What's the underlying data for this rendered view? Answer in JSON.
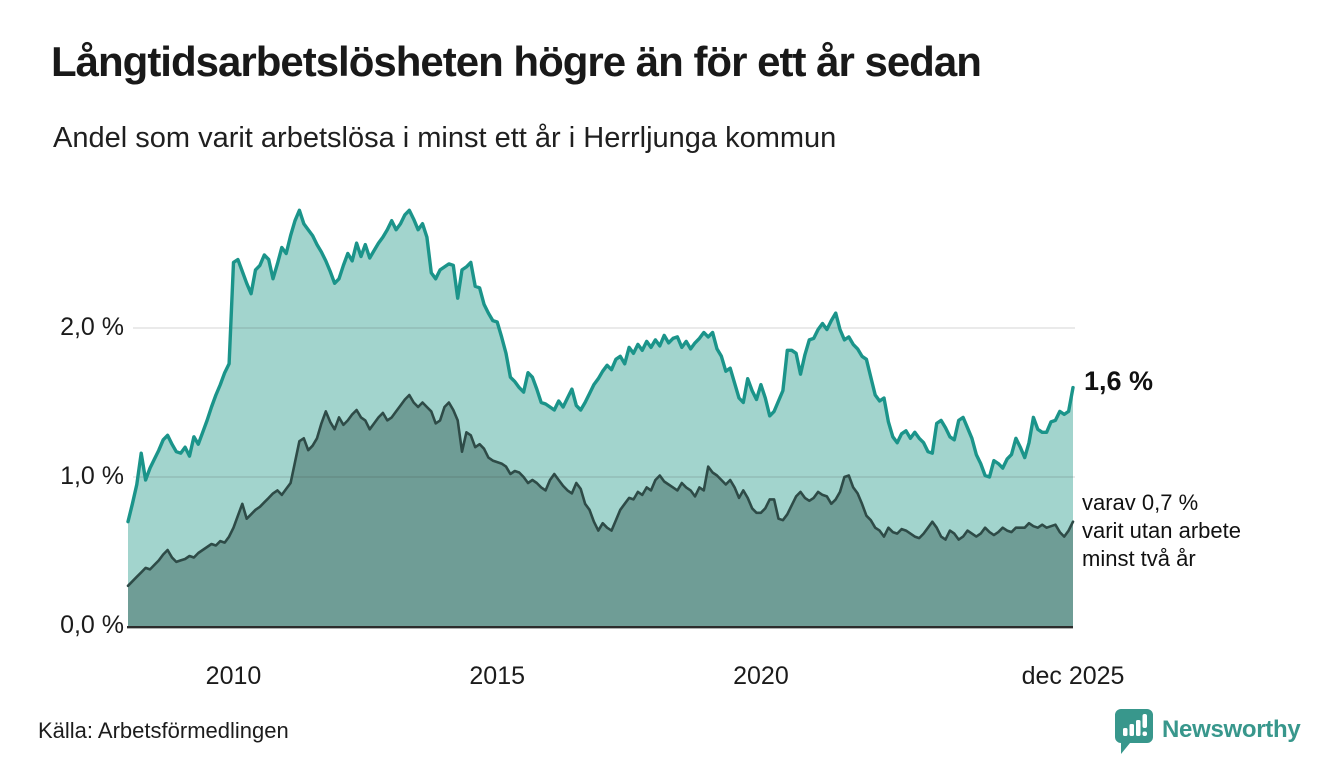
{
  "header": {
    "title": "Långtidsarbetslösheten högre än för ett år sedan",
    "subtitle": "Andel som varit arbetslösa i minst ett år i Herrljunga kommun"
  },
  "chart_data": {
    "type": "area",
    "title": "Långtidsarbetslösheten högre än för ett år sedan",
    "subtitle": "Andel som varit arbetslösa i minst ett år i Herrljunga kommun",
    "unit": "%",
    "x_range": {
      "start": "2008-01",
      "end": "2025-12",
      "frequency": "monthly"
    },
    "ylim": [
      0,
      2.86
    ],
    "grid": "horizontal-only",
    "legend_position": "direct-labels-right",
    "y_ticks": [
      {
        "label": "0,0 %",
        "value": 0
      },
      {
        "label": "1,0 %",
        "value": 1
      },
      {
        "label": "2,0 %",
        "value": 2
      }
    ],
    "x_ticks": [
      {
        "label": "2010",
        "index": 24
      },
      {
        "label": "2015",
        "index": 84
      },
      {
        "label": "2020",
        "index": 144
      },
      {
        "label": "dec 2025",
        "index": 215
      }
    ],
    "series": [
      {
        "name": "Andel arbetslösa minst ett år",
        "color": "#1b948a",
        "fill": "#a2d4cd",
        "end_value": 1.6,
        "end_label": "1,6 %",
        "values": [
          0.7,
          0.82,
          0.95,
          1.16,
          0.98,
          1.06,
          1.12,
          1.18,
          1.25,
          1.28,
          1.22,
          1.17,
          1.16,
          1.2,
          1.14,
          1.27,
          1.22,
          1.3,
          1.38,
          1.47,
          1.55,
          1.62,
          1.7,
          1.76,
          2.44,
          2.46,
          2.38,
          2.3,
          2.23,
          2.39,
          2.42,
          2.49,
          2.46,
          2.33,
          2.43,
          2.54,
          2.5,
          2.62,
          2.72,
          2.79,
          2.7,
          2.66,
          2.62,
          2.56,
          2.51,
          2.45,
          2.38,
          2.3,
          2.33,
          2.42,
          2.5,
          2.45,
          2.57,
          2.48,
          2.56,
          2.47,
          2.52,
          2.57,
          2.61,
          2.66,
          2.72,
          2.66,
          2.7,
          2.76,
          2.79,
          2.73,
          2.66,
          2.7,
          2.61,
          2.37,
          2.33,
          2.39,
          2.41,
          2.43,
          2.42,
          2.2,
          2.39,
          2.41,
          2.44,
          2.28,
          2.27,
          2.16,
          2.1,
          2.05,
          2.04,
          1.94,
          1.83,
          1.67,
          1.64,
          1.6,
          1.57,
          1.7,
          1.67,
          1.59,
          1.5,
          1.49,
          1.47,
          1.45,
          1.51,
          1.47,
          1.53,
          1.59,
          1.48,
          1.45,
          1.5,
          1.56,
          1.62,
          1.66,
          1.71,
          1.75,
          1.72,
          1.79,
          1.81,
          1.76,
          1.87,
          1.83,
          1.89,
          1.85,
          1.91,
          1.87,
          1.92,
          1.88,
          1.95,
          1.9,
          1.93,
          1.94,
          1.87,
          1.91,
          1.86,
          1.9,
          1.93,
          1.97,
          1.94,
          1.97,
          1.86,
          1.81,
          1.71,
          1.73,
          1.63,
          1.53,
          1.5,
          1.66,
          1.58,
          1.52,
          1.62,
          1.53,
          1.41,
          1.44,
          1.51,
          1.58,
          1.85,
          1.85,
          1.83,
          1.69,
          1.82,
          1.92,
          1.93,
          1.99,
          2.03,
          1.99,
          2.05,
          2.1,
          1.99,
          1.92,
          1.94,
          1.89,
          1.86,
          1.81,
          1.79,
          1.67,
          1.55,
          1.51,
          1.53,
          1.37,
          1.27,
          1.23,
          1.29,
          1.31,
          1.26,
          1.3,
          1.26,
          1.23,
          1.17,
          1.16,
          1.36,
          1.38,
          1.33,
          1.27,
          1.25,
          1.38,
          1.4,
          1.33,
          1.26,
          1.15,
          1.09,
          1.01,
          1.0,
          1.11,
          1.09,
          1.06,
          1.12,
          1.15,
          1.26,
          1.2,
          1.13,
          1.23,
          1.4,
          1.32,
          1.3,
          1.3,
          1.37,
          1.38,
          1.44,
          1.42,
          1.44,
          1.6
        ]
      },
      {
        "name": "Varav utan arbete minst två år",
        "color": "#2e4b47",
        "fill": "#6f9d96",
        "end_value": 0.7,
        "end_label_lines": [
          "varav 0,7 %",
          "varit utan arbete",
          "minst två år"
        ],
        "values": [
          0.27,
          0.3,
          0.33,
          0.36,
          0.39,
          0.38,
          0.41,
          0.44,
          0.48,
          0.51,
          0.46,
          0.43,
          0.44,
          0.45,
          0.47,
          0.46,
          0.49,
          0.51,
          0.53,
          0.55,
          0.54,
          0.57,
          0.56,
          0.6,
          0.66,
          0.74,
          0.82,
          0.72,
          0.75,
          0.78,
          0.8,
          0.83,
          0.86,
          0.89,
          0.91,
          0.88,
          0.92,
          0.96,
          1.1,
          1.24,
          1.26,
          1.18,
          1.21,
          1.26,
          1.36,
          1.44,
          1.37,
          1.32,
          1.4,
          1.35,
          1.38,
          1.42,
          1.45,
          1.4,
          1.38,
          1.32,
          1.36,
          1.4,
          1.43,
          1.38,
          1.4,
          1.44,
          1.48,
          1.52,
          1.55,
          1.5,
          1.47,
          1.5,
          1.47,
          1.44,
          1.36,
          1.38,
          1.47,
          1.5,
          1.45,
          1.38,
          1.17,
          1.3,
          1.28,
          1.2,
          1.22,
          1.19,
          1.13,
          1.11,
          1.1,
          1.09,
          1.07,
          1.02,
          1.04,
          1.03,
          1.0,
          0.96,
          0.98,
          0.96,
          0.93,
          0.91,
          0.98,
          1.02,
          0.98,
          0.94,
          0.91,
          0.89,
          0.96,
          0.92,
          0.82,
          0.78,
          0.7,
          0.64,
          0.69,
          0.66,
          0.64,
          0.71,
          0.78,
          0.82,
          0.86,
          0.85,
          0.9,
          0.88,
          0.93,
          0.91,
          0.98,
          1.01,
          0.97,
          0.95,
          0.93,
          0.91,
          0.96,
          0.93,
          0.91,
          0.87,
          0.93,
          0.91,
          1.07,
          1.03,
          1.01,
          0.98,
          0.95,
          0.98,
          0.93,
          0.86,
          0.91,
          0.86,
          0.79,
          0.76,
          0.76,
          0.79,
          0.85,
          0.85,
          0.72,
          0.71,
          0.75,
          0.81,
          0.87,
          0.9,
          0.86,
          0.84,
          0.86,
          0.9,
          0.88,
          0.87,
          0.82,
          0.85,
          0.9,
          1.0,
          1.01,
          0.93,
          0.89,
          0.82,
          0.74,
          0.71,
          0.66,
          0.64,
          0.6,
          0.66,
          0.63,
          0.62,
          0.65,
          0.64,
          0.62,
          0.6,
          0.59,
          0.62,
          0.66,
          0.7,
          0.66,
          0.6,
          0.58,
          0.64,
          0.62,
          0.58,
          0.6,
          0.64,
          0.62,
          0.6,
          0.62,
          0.66,
          0.63,
          0.61,
          0.63,
          0.66,
          0.64,
          0.63,
          0.66,
          0.66,
          0.66,
          0.69,
          0.67,
          0.66,
          0.68,
          0.66,
          0.67,
          0.68,
          0.63,
          0.6,
          0.64,
          0.7
        ]
      }
    ]
  },
  "annotations": {
    "primary": "1,6 %",
    "secondary_lines": [
      "varav 0,7 %",
      "varit utan arbete",
      "minst två år"
    ]
  },
  "footer": {
    "source": "Källa: Arbetsförmedlingen",
    "brand": "Newsworthy",
    "brand_color": "#38978c"
  }
}
